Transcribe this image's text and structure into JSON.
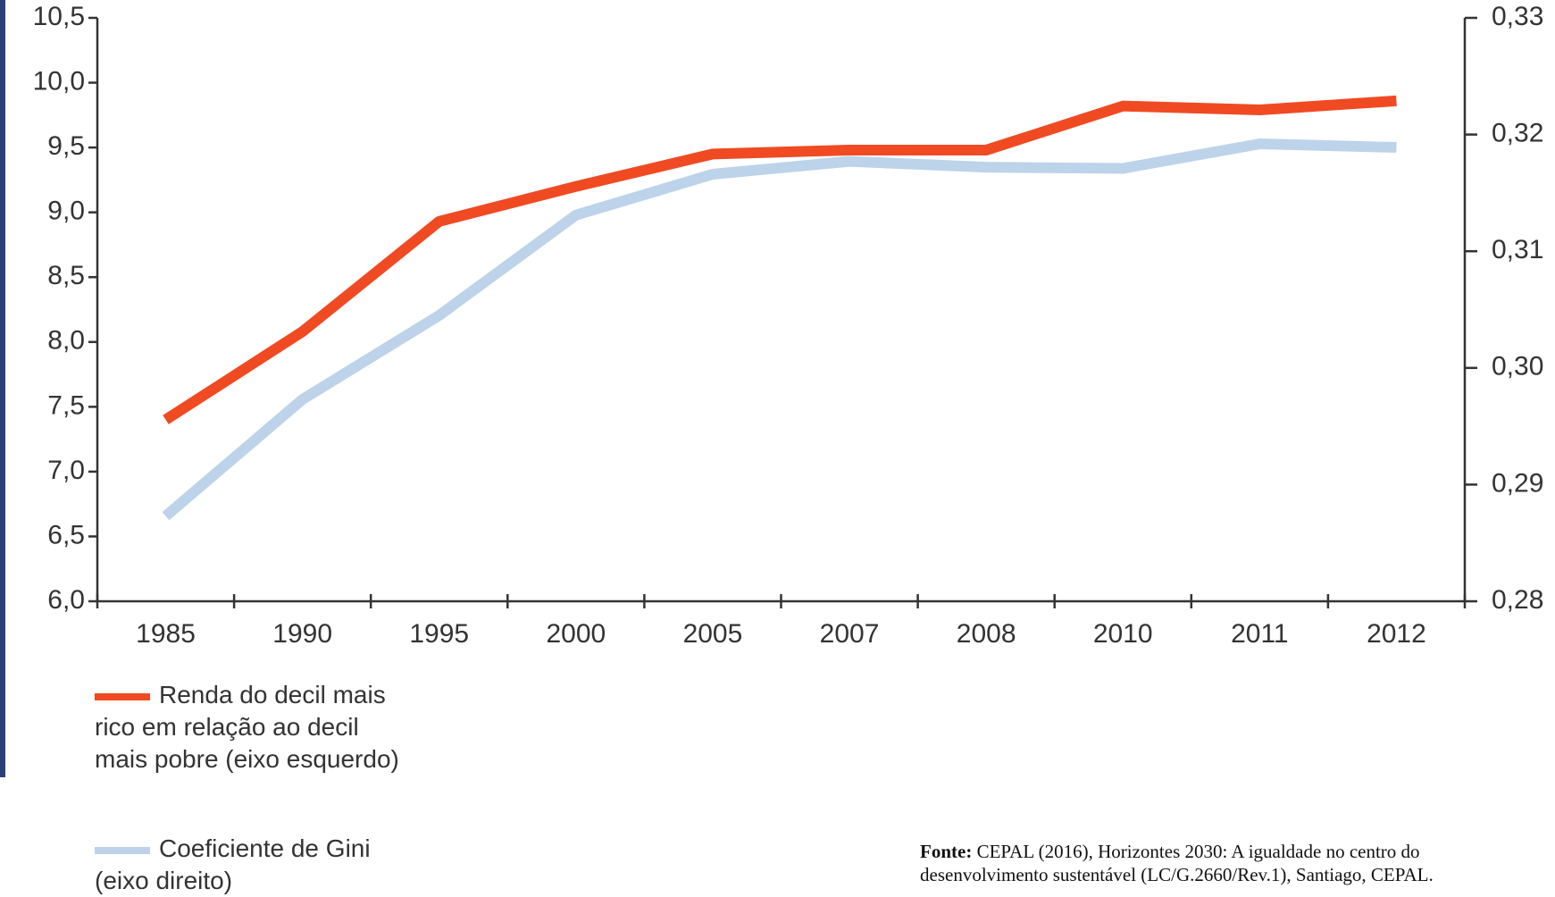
{
  "chart_data": {
    "type": "line",
    "categories": [
      "1985",
      "1990",
      "1995",
      "2000",
      "2005",
      "2007",
      "2008",
      "2010",
      "2011",
      "2012"
    ],
    "series": [
      {
        "name": "Renda do decil mais rico em relação ao decil mais pobre (eixo esquerdo)",
        "color": "#f04a23",
        "axis": "y",
        "values": [
          7.4,
          8.08,
          8.93,
          9.2,
          9.45,
          9.48,
          9.48,
          9.82,
          9.79,
          9.86
        ]
      },
      {
        "name": "Coeficiente de Gini (eixo direito)",
        "color": "#bcd3ea",
        "axis": "y2",
        "values": [
          0.2873,
          0.2973,
          0.3045,
          0.3131,
          0.3166,
          0.3177,
          0.3172,
          0.3171,
          0.3192,
          0.3189
        ]
      }
    ],
    "ylim": [
      6.0,
      10.5
    ],
    "yticks": [
      {
        "value": 6.0,
        "label": "6,0"
      },
      {
        "value": 6.5,
        "label": "6,5"
      },
      {
        "value": 7.0,
        "label": "7,0"
      },
      {
        "value": 7.5,
        "label": "7,5"
      },
      {
        "value": 8.0,
        "label": "8,0"
      },
      {
        "value": 8.5,
        "label": "8,5"
      },
      {
        "value": 9.0,
        "label": "9,0"
      },
      {
        "value": 9.5,
        "label": "9,5"
      },
      {
        "value": 10.0,
        "label": "10,0"
      },
      {
        "value": 10.5,
        "label": "10,5"
      }
    ],
    "y2lim": [
      0.28,
      0.33
    ],
    "y2ticks": [
      {
        "value": 0.28,
        "label": "0,28"
      },
      {
        "value": 0.29,
        "label": "0,29"
      },
      {
        "value": 0.3,
        "label": "0,30"
      },
      {
        "value": 0.31,
        "label": "0,31"
      },
      {
        "value": 0.32,
        "label": "0,32"
      },
      {
        "value": 0.33,
        "label": "0,33"
      }
    ],
    "source_label": "Fonte:",
    "source_text": "CEPAL (2016), Horizontes 2030: A igualdade no centro do desenvolvimento sustentável (LC/G.2660/Rev.1), Santiago, CEPAL."
  }
}
